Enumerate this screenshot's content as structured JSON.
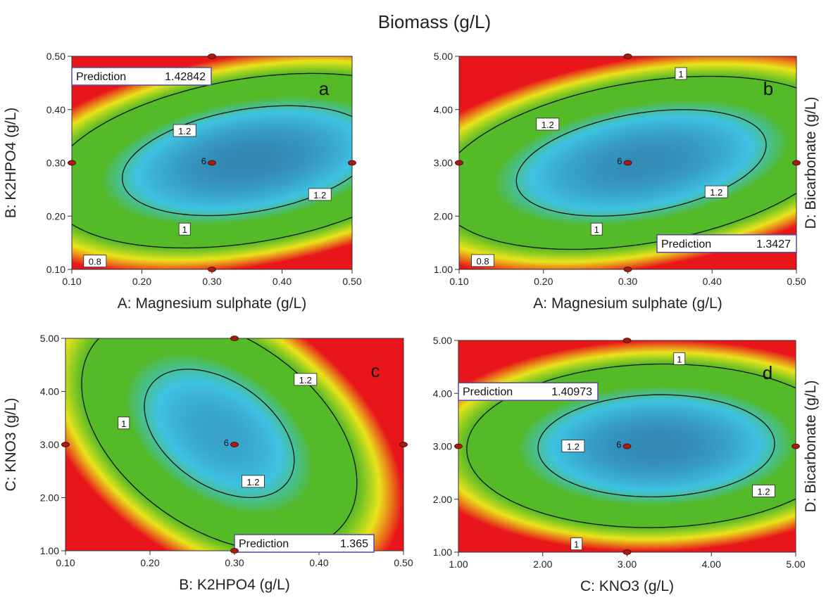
{
  "title": "Biomass (g/L)",
  "colors": {
    "low": "#1c1d5e",
    "cyan": "#3fc3e3",
    "mid": "#54ba27",
    "yellow": "#e9e51b",
    "high": "#e8151a",
    "design_point": "#a51c14"
  },
  "chart_data": [
    {
      "type": "heatmap",
      "panel": "a",
      "xlabel": "A: Magnesium sulphate (g/L)",
      "ylabel": "B: K2HPO4 (g/L)",
      "right_label": "",
      "xlim": [
        0.1,
        0.5
      ],
      "ylim": [
        0.1,
        0.5
      ],
      "xticks": [
        "0.10",
        "0.20",
        "0.30",
        "0.40",
        "0.50"
      ],
      "yticks": [
        "0.10",
        "0.20",
        "0.30",
        "0.40",
        "0.50"
      ],
      "model": {
        "k": 0.88,
        "lx": -0.09,
        "ly": 0.03,
        "qx": 0.18,
        "qy": 0.55,
        "xy": -0.2
      },
      "contour_labels": [
        {
          "text": "1.2",
          "x": 0.261,
          "y": 0.36
        },
        {
          "text": "1.2",
          "x": 0.454,
          "y": 0.24
        },
        {
          "text": "1",
          "x": 0.261,
          "y": 0.175
        },
        {
          "text": "0.8",
          "x": 0.133,
          "y": 0.115
        }
      ],
      "prediction": {
        "label": "Prediction",
        "value": "1.42842",
        "x": 0.1,
        "y": 0.5
      },
      "design_points": [
        {
          "x": 0.3,
          "y": 0.5
        },
        {
          "x": 0.1,
          "y": 0.3
        },
        {
          "x": 0.3,
          "y": 0.3
        },
        {
          "x": 0.5,
          "y": 0.3
        },
        {
          "x": 0.3,
          "y": 0.1
        }
      ],
      "center_label": "6"
    },
    {
      "type": "heatmap",
      "panel": "b",
      "xlabel": "A: Magnesium sulphate (g/L)",
      "ylabel": "",
      "right_label": "D: Bicarbonate (g/L)",
      "xlim": [
        0.1,
        0.5
      ],
      "ylim": [
        1.0,
        5.0
      ],
      "xticks": [
        "0.10",
        "0.20",
        "0.30",
        "0.40",
        "0.50"
      ],
      "yticks": [
        "1.00",
        "2.00",
        "3.00",
        "4.00",
        "5.00"
      ],
      "model": {
        "k": 0.88,
        "lx": -0.04,
        "ly": 0.02,
        "qx": 0.25,
        "qy": 0.55,
        "xy": -0.25
      },
      "contour_labels": [
        {
          "text": "1.2",
          "x": 0.205,
          "y": 3.72
        },
        {
          "text": "1",
          "x": 0.363,
          "y": 4.67
        },
        {
          "text": "1.2",
          "x": 0.405,
          "y": 2.45
        },
        {
          "text": "1",
          "x": 0.263,
          "y": 1.75
        },
        {
          "text": "0.8",
          "x": 0.128,
          "y": 1.16
        }
      ],
      "prediction": {
        "label": "Prediction",
        "value": "1.3427",
        "x": 0.5,
        "y": 1.65
      },
      "design_points": [
        {
          "x": 0.3,
          "y": 5.0
        },
        {
          "x": 0.1,
          "y": 3.0
        },
        {
          "x": 0.3,
          "y": 3.0
        },
        {
          "x": 0.5,
          "y": 3.0
        },
        {
          "x": 0.3,
          "y": 1.0
        }
      ],
      "center_label": "6"
    },
    {
      "type": "heatmap",
      "panel": "c",
      "xlabel": "B: K2HPO4 (g/L)",
      "ylabel": "C: KNO3 (g/L)",
      "right_label": "",
      "xlim": [
        0.1,
        0.5
      ],
      "ylim": [
        1.0,
        5.0
      ],
      "xticks": [
        "0.10",
        "0.20",
        "0.30",
        "0.40",
        "0.50"
      ],
      "yticks": [
        "1.00",
        "2.00",
        "3.00",
        "4.00",
        "5.00"
      ],
      "model": {
        "k": 0.92,
        "lx": 0.06,
        "ly": -0.03,
        "qx": 0.52,
        "qy": 0.28,
        "xy": 0.32
      },
      "contour_labels": [
        {
          "text": "1.2",
          "x": 0.384,
          "y": 4.22
        },
        {
          "text": "1",
          "x": 0.169,
          "y": 3.4
        },
        {
          "text": "1.2",
          "x": 0.322,
          "y": 2.3
        }
      ],
      "prediction": {
        "label": "Prediction",
        "value": "1.365",
        "x": 0.3,
        "y": 1.0
      },
      "design_points": [
        {
          "x": 0.3,
          "y": 5.0
        },
        {
          "x": 0.1,
          "y": 3.0
        },
        {
          "x": 0.3,
          "y": 3.0
        },
        {
          "x": 0.5,
          "y": 3.0
        },
        {
          "x": 0.3,
          "y": 1.0
        }
      ],
      "center_label": "6"
    },
    {
      "type": "heatmap",
      "panel": "d",
      "xlabel": "C: KNO3 (g/L)",
      "ylabel": "",
      "right_label": "D: Bicarbonate (g/L)",
      "xlim": [
        1.0,
        5.0
      ],
      "ylim": [
        1.0,
        5.0
      ],
      "xticks": [
        "1.00",
        "2.00",
        "3.00",
        "4.00",
        "5.00"
      ],
      "yticks": [
        "1.00",
        "2.00",
        "3.00",
        "4.00",
        "5.00"
      ],
      "model": {
        "k": 0.88,
        "lx": -0.09,
        "ly": 0.0,
        "qx": 0.26,
        "qy": 0.55,
        "xy": -0.03
      },
      "contour_labels": [
        {
          "text": "1.2",
          "x": 2.36,
          "y": 3.0
        },
        {
          "text": "1",
          "x": 3.62,
          "y": 4.65
        },
        {
          "text": "1.2",
          "x": 4.62,
          "y": 2.15
        },
        {
          "text": "1",
          "x": 2.4,
          "y": 1.15
        }
      ],
      "prediction": {
        "label": "Prediction",
        "value": "1.40973",
        "x": 1.0,
        "y": 4.2
      },
      "design_points": [
        {
          "x": 3.0,
          "y": 5.0
        },
        {
          "x": 1.0,
          "y": 3.0
        },
        {
          "x": 3.0,
          "y": 3.0
        },
        {
          "x": 5.0,
          "y": 3.0
        },
        {
          "x": 3.0,
          "y": 1.0
        }
      ],
      "center_label": "6"
    }
  ]
}
